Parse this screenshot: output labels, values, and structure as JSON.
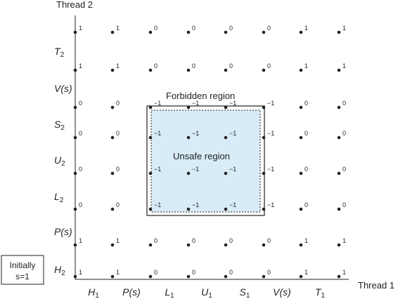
{
  "axes": {
    "x_title": "Thread 1",
    "y_title": "Thread 2",
    "x_ticks": [
      {
        "main": "H",
        "sub": "1"
      },
      {
        "main": "P(s)",
        "sub": ""
      },
      {
        "main": "L",
        "sub": "1"
      },
      {
        "main": "U",
        "sub": "1"
      },
      {
        "main": "S",
        "sub": "1"
      },
      {
        "main": "V(s)",
        "sub": ""
      },
      {
        "main": "T",
        "sub": "1"
      }
    ],
    "y_ticks": [
      {
        "main": "H",
        "sub": "2"
      },
      {
        "main": "P(s)",
        "sub": ""
      },
      {
        "main": "L",
        "sub": "2"
      },
      {
        "main": "U",
        "sub": "2"
      },
      {
        "main": "S",
        "sub": "2"
      },
      {
        "main": "V(s)",
        "sub": ""
      },
      {
        "main": "T",
        "sub": "2"
      }
    ]
  },
  "grid_values": [
    [
      "1",
      "1",
      "0",
      "0",
      "0",
      "0",
      "1",
      "1"
    ],
    [
      "1",
      "1",
      "0",
      "0",
      "0",
      "0",
      "1",
      "1"
    ],
    [
      "0",
      "0",
      "−1",
      "−1",
      "−1",
      "−1",
      "0",
      "0"
    ],
    [
      "0",
      "0",
      "−1",
      "−1",
      "−1",
      "−1",
      "0",
      "0"
    ],
    [
      "0",
      "0",
      "−1",
      "−1",
      "−1",
      "−1",
      "0",
      "0"
    ],
    [
      "0",
      "0",
      "−1",
      "−1",
      "−1",
      "−1",
      "0",
      "0"
    ],
    [
      "1",
      "1",
      "0",
      "0",
      "0",
      "0",
      "1",
      "1"
    ],
    [
      "1",
      "1",
      "0",
      "0",
      "0",
      "0",
      "1",
      "1"
    ]
  ],
  "forbidden_region": {
    "label": "Forbidden region",
    "from": [
      2,
      2
    ],
    "to": [
      5,
      5
    ]
  },
  "unsafe_region": {
    "label": "Unsafe region",
    "fill": "#d8ecf7"
  },
  "initial_note": {
    "line1": "Initially",
    "line2": "s=1"
  },
  "colors": {
    "ink": "#222222",
    "unsafe_fill": "#d8ecf7"
  }
}
